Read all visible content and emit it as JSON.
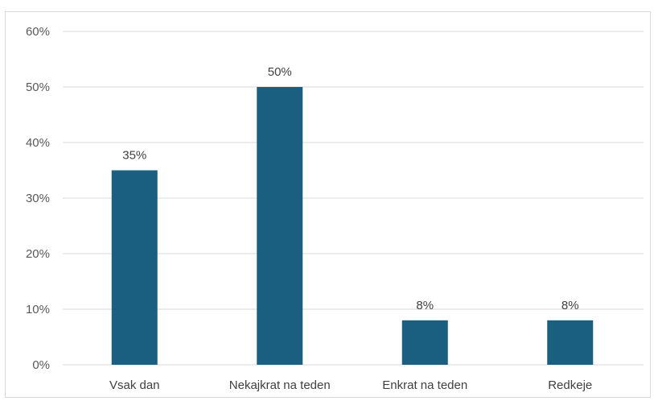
{
  "chart_data": {
    "type": "bar",
    "categories": [
      "Vsak dan",
      "Nekajkrat na teden",
      "Enkrat na teden",
      "Redkeje"
    ],
    "values": [
      35,
      50,
      8,
      8
    ],
    "data_labels": [
      "35%",
      "50%",
      "8%",
      "8%"
    ],
    "ylim": [
      0,
      60
    ],
    "yticks": [
      0,
      10,
      20,
      30,
      40,
      50,
      60
    ],
    "ytick_labels": [
      "0%",
      "10%",
      "20%",
      "30%",
      "40%",
      "50%",
      "60%"
    ],
    "grid": true,
    "bar_color": "#1a5e80",
    "grid_color": "#d9d9d9"
  }
}
